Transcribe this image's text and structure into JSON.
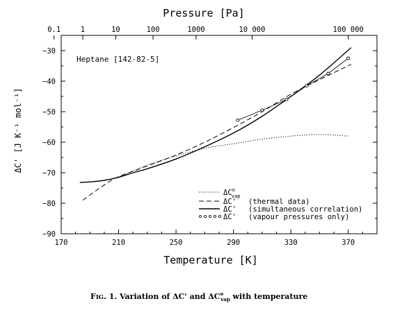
{
  "chart_data": {
    "type": "line",
    "title": "",
    "top_axis": {
      "label": "Pressure [Pa]",
      "scale": "log",
      "ticks": [
        {
          "value": 0.1,
          "label": "0.1"
        },
        {
          "value": 1,
          "label": "1"
        },
        {
          "value": 10,
          "label": "10"
        },
        {
          "value": 100,
          "label": "100"
        },
        {
          "value": 1000,
          "label": "1000"
        },
        {
          "value": 10000,
          "label": "10 000"
        },
        {
          "value": 100000,
          "label": "100 000"
        }
      ],
      "tick_temperatures": [
        165,
        185,
        208,
        234,
        264,
        303,
        370
      ]
    },
    "xlabel": "Temperature [K]",
    "ylabel": "ΔC' [J K⁻¹ mol⁻¹]",
    "xlim": [
      170,
      390
    ],
    "ylim": [
      -90,
      -25
    ],
    "xticks": [
      170,
      210,
      250,
      290,
      330,
      370
    ],
    "yticks": [
      -90,
      -80,
      -70,
      -60,
      -50,
      -40,
      -30
    ],
    "annotation": "Heptane [142-82-5]",
    "legend_position": "bottom-right",
    "legend": [
      {
        "symbol": "dotted",
        "label": "ΔC°vap",
        "label_main": "ΔC",
        "label_sup": "o",
        "label_sub": "vap"
      },
      {
        "symbol": "dashed",
        "label": "ΔC' (thermal data)",
        "label_main": "ΔC'",
        "label_rest": "(thermal data)"
      },
      {
        "symbol": "solid",
        "label": "ΔC' (simultaneous correlation)",
        "label_main": "ΔC'",
        "label_rest": "(simultaneous correlation)"
      },
      {
        "symbol": "circles",
        "label": "ΔC' (vapour pressures only)",
        "label_main": "ΔC'",
        "label_rest": "(vapour pressures only)"
      }
    ],
    "series": [
      {
        "style": "dotted",
        "x": [
          210,
          230,
          250,
          270,
          290,
          310,
          330,
          350,
          370
        ],
        "y": [
          -71.5,
          -67.5,
          -64.5,
          -62,
          -60.5,
          -59,
          -58,
          -57.5,
          -58
        ]
      },
      {
        "style": "dashed",
        "x": [
          185,
          200,
          210,
          230,
          250,
          270,
          290,
          310,
          330,
          350,
          372
        ],
        "y": [
          -79,
          -74,
          -71.3,
          -67.8,
          -64.2,
          -60,
          -55.2,
          -50,
          -44.3,
          -39.5,
          -34.5
        ]
      },
      {
        "style": "solid",
        "x": [
          183,
          190,
          200,
          210,
          220,
          230,
          250,
          270,
          290,
          310,
          330,
          350,
          372
        ],
        "y": [
          -73.2,
          -73,
          -72.5,
          -71.5,
          -70,
          -68.7,
          -65.5,
          -61.5,
          -57,
          -51.5,
          -45,
          -38,
          -29
        ]
      },
      {
        "style": "circles",
        "x": [
          293,
          310,
          327,
          341,
          356,
          370
        ],
        "y": [
          -52.8,
          -49.5,
          -46,
          -41.5,
          -37.5,
          -32.5
        ]
      }
    ]
  },
  "caption": {
    "lead": "F",
    "small_caps": "IG",
    "text1": ". 1. Variation of ΔC' and ΔC",
    "sup": "o",
    "sub": "vap",
    "text2": " with temperature"
  }
}
